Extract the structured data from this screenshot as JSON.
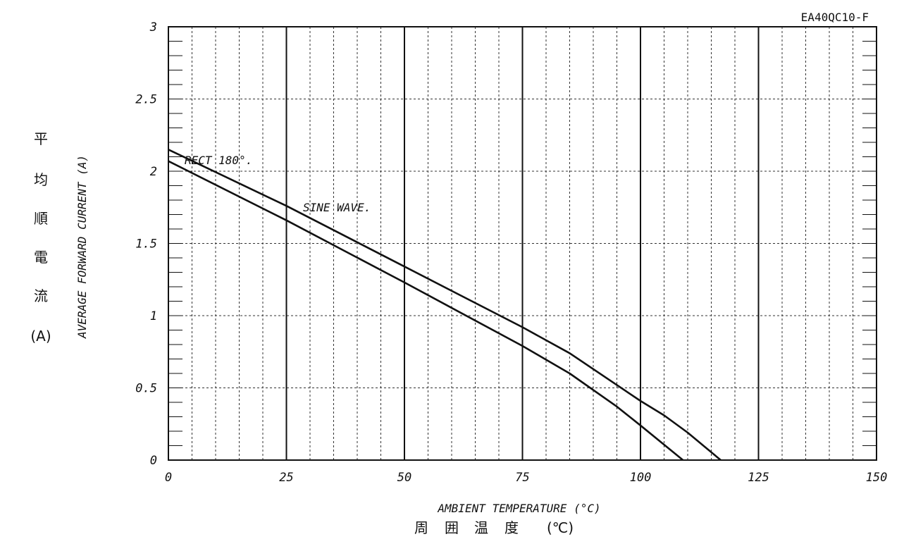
{
  "chart_data": {
    "type": "line",
    "code_label": "EA40QC10-F",
    "xlabel": "AMBIENT TEMPERATURE (°C)",
    "xlabel_jp": [
      "周",
      "囲",
      "温",
      "度",
      "(℃)"
    ],
    "ylabel": "AVERAGE FORWARD CURRENT (A)",
    "ylabel_jp": [
      "平",
      "均",
      "順",
      "電",
      "流",
      "(A)"
    ],
    "xlim": [
      0,
      150
    ],
    "ylim": [
      0,
      3
    ],
    "x_ticks": [
      "0",
      "25",
      "50",
      "75",
      "100",
      "125",
      "150"
    ],
    "y_ticks": [
      "0",
      "0.5",
      "1",
      "1.5",
      "2",
      "2.5",
      "3"
    ],
    "grid": true,
    "series": [
      {
        "name": "RECT 180°.",
        "x": [
          0,
          25,
          50,
          75,
          85,
          100,
          105,
          110,
          117
        ],
        "y": [
          2.15,
          1.76,
          1.34,
          0.92,
          0.74,
          0.41,
          0.31,
          0.19,
          0.0
        ]
      },
      {
        "name": "SINE WAVE.",
        "x": [
          0,
          25,
          50,
          75,
          85,
          95,
          100,
          109
        ],
        "y": [
          2.07,
          1.66,
          1.23,
          0.79,
          0.6,
          0.37,
          0.24,
          0.0
        ]
      }
    ]
  }
}
